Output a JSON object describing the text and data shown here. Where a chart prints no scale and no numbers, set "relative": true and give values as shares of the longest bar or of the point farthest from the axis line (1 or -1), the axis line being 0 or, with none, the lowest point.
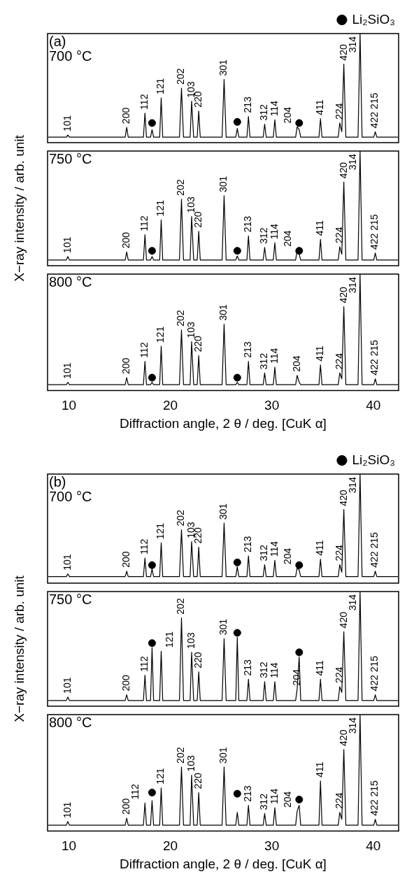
{
  "chart_data": [
    {
      "type": "line",
      "x": [
        8.0,
        9.75,
        9.9,
        10.05,
        15.55,
        15.7,
        15.85,
        17.35,
        17.5,
        17.65,
        18.05,
        18.2,
        18.35,
        18.95,
        19.1,
        19.25,
        20.9,
        21.1,
        21.3,
        21.95,
        22.1,
        22.3,
        22.65,
        22.8,
        22.95,
        25.1,
        25.3,
        25.5,
        26.45,
        26.6,
        26.75,
        27.55,
        27.7,
        27.85,
        29.15,
        29.3,
        29.45,
        30.15,
        30.3,
        30.45,
        32.35,
        32.5,
        32.7,
        32.85,
        34.65,
        34.8,
        34.95,
        36.55,
        36.7,
        36.9,
        37.1,
        37.3,
        38.5,
        38.7,
        38.9,
        40.05,
        40.2,
        40.35,
        42.4
      ],
      "xlim": [
        7.9,
        42.5
      ],
      "xticks": [
        10,
        20,
        30,
        40
      ],
      "relative": true,
      "tick_labels": false,
      "legend": "top right",
      "series": [
        {
          "type": "line",
          "color": "#000000",
          "marker": "none",
          "values": [
            0.05,
            0.05,
            0.07,
            0.05,
            0.05,
            0.14,
            0.05,
            0.05,
            0.27,
            0.05,
            0.05,
            0.12,
            0.05,
            0.05,
            0.41,
            0.05,
            0.05,
            0.5,
            0.05,
            0.05,
            0.38,
            0.05,
            0.05,
            0.29,
            0.05,
            0.05,
            0.58,
            0.05,
            0.05,
            0.13,
            0.05,
            0.05,
            0.24,
            0.05,
            0.05,
            0.17,
            0.05,
            0.05,
            0.21,
            0.05,
            0.05,
            0.145,
            0.12,
            0.05,
            0.05,
            0.22,
            0.05,
            0.05,
            0.18,
            0.1,
            0.72,
            0.05,
            0.05,
            1,
            0.05,
            0.05,
            0.1,
            0.05,
            0.05
          ]
        },
        {
          "type": "scatter",
          "name": "Li₂SiO₃",
          "color": "#000000",
          "marker": "circle",
          "x": [
            18.2,
            26.6,
            32.7
          ],
          "values": [
            0.18,
            0.19,
            0.18
          ]
        }
      ],
      "annotations": [
        "(a)",
        "700 °C",
        {
          "text": "101",
          "x": 9.9,
          "y": 0.07
        },
        {
          "text": "200",
          "x": 15.7,
          "y": 0.14
        },
        {
          "text": "112",
          "x": 17.5,
          "y": 0.27
        },
        {
          "text": "121",
          "x": 19.1,
          "y": 0.41
        },
        {
          "text": "202",
          "x": 21.1,
          "y": 0.5
        },
        {
          "text": "103",
          "x": 22.1,
          "y": 0.38
        },
        {
          "text": "220",
          "x": 22.8,
          "y": 0.29
        },
        {
          "text": "301",
          "x": 25.3,
          "y": 0.58
        },
        {
          "text": "213",
          "x": 27.7,
          "y": 0.24
        },
        {
          "text": "312",
          "x": 29.3,
          "y": 0.17
        },
        {
          "text": "114",
          "x": 30.3,
          "y": 0.21
        },
        {
          "text": "204",
          "x": 32.5,
          "y": 0.145
        },
        {
          "text": "411",
          "x": 34.8,
          "y": 0.22
        },
        {
          "text": "224",
          "x": 36.7,
          "y": 0.18
        },
        {
          "text": "420",
          "x": 37.1,
          "y": 0.72
        },
        {
          "text": "314",
          "x": 38.7,
          "y": 1
        },
        {
          "text": "422 215",
          "x": 40.2,
          "y": 0.1
        }
      ]
    },
    {
      "type": "line",
      "x": [
        8.0,
        9.75,
        9.9,
        10.05,
        15.55,
        15.7,
        15.85,
        17.35,
        17.5,
        17.65,
        18.05,
        18.2,
        18.35,
        18.95,
        19.1,
        19.25,
        20.9,
        21.1,
        21.3,
        21.95,
        22.1,
        22.3,
        22.65,
        22.8,
        22.95,
        25.1,
        25.3,
        25.5,
        26.45,
        26.6,
        26.75,
        27.55,
        27.7,
        27.85,
        29.15,
        29.3,
        29.45,
        30.15,
        30.3,
        30.45,
        32.35,
        32.5,
        32.7,
        32.85,
        34.65,
        34.8,
        34.95,
        36.55,
        36.7,
        36.9,
        37.1,
        37.3,
        38.5,
        38.7,
        38.9,
        40.05,
        40.2,
        40.35,
        42.4
      ],
      "xlim": [
        7.9,
        42.5
      ],
      "xticks": [
        10,
        20,
        30,
        40
      ],
      "relative": true,
      "tick_labels": false,
      "ylabel": "X−ray intensity / arb. unit",
      "series": [
        {
          "type": "line",
          "color": "#000000",
          "marker": "none",
          "values": [
            0.05,
            0.05,
            0.08,
            0.05,
            0.05,
            0.12,
            0.05,
            0.05,
            0.27,
            0.05,
            0.05,
            0.08,
            0.05,
            0.05,
            0.4,
            0.05,
            0.05,
            0.58,
            0.05,
            0.05,
            0.43,
            0.05,
            0.05,
            0.3,
            0.05,
            0.05,
            0.61,
            0.05,
            0.05,
            0.085,
            0.05,
            0.05,
            0.26,
            0.05,
            0.05,
            0.16,
            0.05,
            0.05,
            0.2,
            0.05,
            0.05,
            0.135,
            0.1,
            0.05,
            0.05,
            0.23,
            0.05,
            0.05,
            0.165,
            0.1,
            0.73,
            0.05,
            0.05,
            1,
            0.05,
            0.05,
            0.11,
            0.05,
            0.05
          ]
        },
        {
          "type": "scatter",
          "color": "#000000",
          "marker": "circle",
          "x": [
            18.2,
            26.6,
            32.7
          ],
          "values": [
            0.13,
            0.13,
            0.13
          ]
        }
      ],
      "annotations": [
        "750 °C",
        {
          "text": "101",
          "x": 9.9,
          "y": 0.08
        },
        {
          "text": "200",
          "x": 15.7,
          "y": 0.12
        },
        {
          "text": "112",
          "x": 17.5,
          "y": 0.27
        },
        {
          "text": "121",
          "x": 19.1,
          "y": 0.4
        },
        {
          "text": "202",
          "x": 21.1,
          "y": 0.58
        },
        {
          "text": "103",
          "x": 22.1,
          "y": 0.43
        },
        {
          "text": "220",
          "x": 22.8,
          "y": 0.3
        },
        {
          "text": "301",
          "x": 25.3,
          "y": 0.61
        },
        {
          "text": "213",
          "x": 27.7,
          "y": 0.26
        },
        {
          "text": "312",
          "x": 29.3,
          "y": 0.16
        },
        {
          "text": "114",
          "x": 30.3,
          "y": 0.2
        },
        {
          "text": "204",
          "x": 32.5,
          "y": 0.135
        },
        {
          "text": "411",
          "x": 34.8,
          "y": 0.23
        },
        {
          "text": "224",
          "x": 36.7,
          "y": 0.165
        },
        {
          "text": "420",
          "x": 37.1,
          "y": 0.73
        },
        {
          "text": "314",
          "x": 38.7,
          "y": 1
        },
        {
          "text": "422 215",
          "x": 40.2,
          "y": 0.11
        }
      ]
    },
    {
      "type": "line",
      "x": [
        8.0,
        9.75,
        9.9,
        10.05,
        15.55,
        15.7,
        15.85,
        17.35,
        17.5,
        17.65,
        18.05,
        18.2,
        18.35,
        18.95,
        19.1,
        19.25,
        20.9,
        21.1,
        21.3,
        21.95,
        22.1,
        22.3,
        22.65,
        22.8,
        22.95,
        25.1,
        25.3,
        25.5,
        26.45,
        26.6,
        26.75,
        27.55,
        27.7,
        27.85,
        29.15,
        29.3,
        29.45,
        30.15,
        30.3,
        30.45,
        32.35,
        32.5,
        32.7,
        32.85,
        34.65,
        34.8,
        34.95,
        36.55,
        36.7,
        36.9,
        37.1,
        37.3,
        38.5,
        38.7,
        38.9,
        40.05,
        40.2,
        40.35,
        42.4
      ],
      "xlim": [
        7.9,
        42.5
      ],
      "xticks": [
        10,
        20,
        30,
        40
      ],
      "relative": true,
      "tick_labels": "x",
      "xlabel": "Diffraction angle, 2 θ / deg. [CuK α]",
      "series": [
        {
          "type": "line",
          "color": "#000000",
          "marker": "none",
          "values": [
            0.05,
            0.05,
            0.07,
            0.05,
            0.05,
            0.11,
            0.05,
            0.05,
            0.25,
            0.05,
            0.05,
            0.07,
            0.05,
            0.05,
            0.38,
            0.05,
            0.05,
            0.52,
            0.05,
            0.05,
            0.42,
            0.05,
            0.05,
            0.3,
            0.05,
            0.05,
            0.57,
            0.05,
            0.05,
            0.07,
            0.05,
            0.05,
            0.25,
            0.05,
            0.05,
            0.15,
            0.05,
            0.05,
            0.2,
            0.05,
            0.05,
            0.13,
            0.07,
            0.05,
            0.05,
            0.22,
            0.05,
            0.05,
            0.15,
            0.1,
            0.72,
            0.05,
            0.05,
            1,
            0.05,
            0.05,
            0.1,
            0.05,
            0.05
          ]
        },
        {
          "type": "scatter",
          "color": "#000000",
          "marker": "circle",
          "x": [
            18.2,
            26.6
          ],
          "values": [
            0.11,
            0.11
          ]
        }
      ],
      "annotations": [
        "800 °C",
        {
          "text": "101",
          "x": 9.9,
          "y": 0.07
        },
        {
          "text": "200",
          "x": 15.7,
          "y": 0.11
        },
        {
          "text": "112",
          "x": 17.5,
          "y": 0.25
        },
        {
          "text": "121",
          "x": 19.1,
          "y": 0.38
        },
        {
          "text": "202",
          "x": 21.1,
          "y": 0.52
        },
        {
          "text": "103",
          "x": 22.1,
          "y": 0.42
        },
        {
          "text": "220",
          "x": 22.8,
          "y": 0.3
        },
        {
          "text": "301",
          "x": 25.3,
          "y": 0.57
        },
        {
          "text": "213",
          "x": 27.7,
          "y": 0.25
        },
        {
          "text": "312",
          "x": 29.3,
          "y": 0.15
        },
        {
          "text": "114",
          "x": 30.3,
          "y": 0.2
        },
        {
          "text": "204",
          "x": 32.5,
          "y": 0.13
        },
        {
          "text": "411",
          "x": 34.8,
          "y": 0.22
        },
        {
          "text": "224",
          "x": 36.7,
          "y": 0.15
        },
        {
          "text": "420",
          "x": 37.1,
          "y": 0.72
        },
        {
          "text": "314",
          "x": 38.7,
          "y": 1
        },
        {
          "text": "422 215",
          "x": 40.2,
          "y": 0.1
        }
      ]
    },
    {
      "type": "line",
      "x": [
        8.0,
        9.75,
        9.9,
        10.05,
        15.55,
        15.7,
        15.85,
        17.35,
        17.5,
        17.65,
        18.05,
        18.2,
        18.35,
        18.95,
        19.1,
        19.25,
        20.9,
        21.1,
        21.3,
        21.95,
        22.1,
        22.3,
        22.65,
        22.8,
        22.95,
        25.1,
        25.3,
        25.5,
        26.45,
        26.6,
        26.75,
        27.55,
        27.7,
        27.85,
        29.15,
        29.3,
        29.45,
        30.15,
        30.3,
        30.45,
        32.35,
        32.5,
        32.7,
        32.85,
        34.65,
        34.8,
        34.95,
        36.55,
        36.7,
        36.9,
        37.1,
        37.3,
        38.5,
        38.7,
        38.9,
        40.05,
        40.2,
        40.35,
        42.4
      ],
      "xlim": [
        7.9,
        42.5
      ],
      "xticks": [
        10,
        20,
        30,
        40
      ],
      "relative": true,
      "tick_labels": false,
      "legend": "top right",
      "series": [
        {
          "type": "line",
          "color": "#000000",
          "marker": "none",
          "values": [
            0.06,
            0.06,
            0.085,
            0.06,
            0.06,
            0.11,
            0.06,
            0.06,
            0.23,
            0.06,
            0.06,
            0.13,
            0.06,
            0.06,
            0.37,
            0.06,
            0.06,
            0.49,
            0.06,
            0.06,
            0.38,
            0.06,
            0.06,
            0.33,
            0.06,
            0.06,
            0.55,
            0.06,
            0.06,
            0.15,
            0.06,
            0.06,
            0.25,
            0.06,
            0.06,
            0.17,
            0.06,
            0.06,
            0.21,
            0.06,
            0.06,
            0.14,
            0.12,
            0.06,
            0.06,
            0.22,
            0.06,
            0.06,
            0.17,
            0.1,
            0.675,
            0.06,
            0.06,
            1,
            0.06,
            0.06,
            0.11,
            0.06,
            0.06
          ]
        },
        {
          "type": "scatter",
          "name": "Li₂SiO₃",
          "color": "#000000",
          "marker": "circle",
          "x": [
            18.2,
            26.6,
            32.7
          ],
          "values": [
            0.165,
            0.19,
            0.165
          ]
        }
      ],
      "annotations": [
        "(b)",
        "700 °C",
        {
          "text": "101",
          "x": 9.9,
          "y": 0.085
        },
        {
          "text": "200",
          "x": 15.7,
          "y": 0.11
        },
        {
          "text": "112",
          "x": 17.5,
          "y": 0.23
        },
        {
          "text": "121",
          "x": 19.1,
          "y": 0.37
        },
        {
          "text": "202",
          "x": 21.1,
          "y": 0.49
        },
        {
          "text": "103",
          "x": 22.1,
          "y": 0.38
        },
        {
          "text": "220",
          "x": 22.8,
          "y": 0.33
        },
        {
          "text": "301",
          "x": 25.3,
          "y": 0.55
        },
        {
          "text": "213",
          "x": 27.7,
          "y": 0.25
        },
        {
          "text": "312",
          "x": 29.3,
          "y": 0.17
        },
        {
          "text": "114",
          "x": 30.3,
          "y": 0.21
        },
        {
          "text": "204",
          "x": 32.5,
          "y": 0.14
        },
        {
          "text": "411",
          "x": 34.8,
          "y": 0.22
        },
        {
          "text": "224",
          "x": 36.7,
          "y": 0.17
        },
        {
          "text": "420",
          "x": 37.1,
          "y": 0.675
        },
        {
          "text": "314",
          "x": 38.7,
          "y": 1
        },
        {
          "text": "422 215",
          "x": 40.2,
          "y": 0.11
        }
      ]
    },
    {
      "type": "line",
      "x": [
        8.0,
        9.75,
        9.9,
        10.05,
        15.55,
        15.7,
        15.85,
        17.35,
        17.5,
        17.65,
        18.05,
        18.2,
        18.35,
        18.95,
        19.1,
        19.25,
        20.9,
        21.1,
        21.3,
        21.95,
        22.1,
        22.3,
        22.65,
        22.8,
        22.95,
        25.1,
        25.3,
        25.5,
        26.45,
        26.6,
        26.75,
        27.55,
        27.7,
        27.85,
        29.15,
        29.3,
        29.45,
        30.15,
        30.3,
        30.45,
        32.35,
        32.5,
        32.7,
        32.85,
        34.65,
        34.8,
        34.95,
        36.55,
        36.7,
        36.9,
        37.1,
        37.3,
        38.5,
        38.7,
        38.9,
        40.05,
        40.2,
        40.35,
        42.4
      ],
      "xlim": [
        7.9,
        42.5
      ],
      "xticks": [
        10,
        20,
        30,
        40
      ],
      "relative": true,
      "tick_labels": false,
      "ylabel": "X−ray intensity / arb. unit",
      "series": [
        {
          "type": "line",
          "color": "#000000",
          "marker": "none",
          "values": [
            0.05,
            0.05,
            0.08,
            0.05,
            0.05,
            0.1,
            0.05,
            0.05,
            0.27,
            0.05,
            0.05,
            0.51,
            0.05,
            0.05,
            0.48,
            0.05,
            0.05,
            0.77,
            0.05,
            0.05,
            0.47,
            0.05,
            0.05,
            0.3,
            0.05,
            0.05,
            0.59,
            0.05,
            0.05,
            0.6,
            0.05,
            0.05,
            0.235,
            0.05,
            0.05,
            0.215,
            0.05,
            0.05,
            0.215,
            0.05,
            0.05,
            0.15,
            0.43,
            0.05,
            0.05,
            0.235,
            0.05,
            0.05,
            0.17,
            0.12,
            0.65,
            0.05,
            0.05,
            1,
            0.05,
            0.05,
            0.1,
            0.05,
            0.05
          ]
        },
        {
          "type": "scatter",
          "color": "#000000",
          "marker": "circle",
          "x": [
            18.2,
            26.6,
            32.7
          ],
          "values": [
            0.55,
            0.64,
            0.47
          ]
        }
      ],
      "annotations": [
        "750 °C",
        {
          "text": "101",
          "x": 9.9,
          "y": 0.08
        },
        {
          "text": "200",
          "x": 15.7,
          "y": 0.1
        },
        {
          "text": "112",
          "x": 17.5,
          "y": 0.27
        },
        {
          "text": "121",
          "x": 19.1,
          "y": 0.48
        },
        {
          "text": "202",
          "x": 21.1,
          "y": 0.77
        },
        {
          "text": "103",
          "x": 22.1,
          "y": 0.47
        },
        {
          "text": "220",
          "x": 22.8,
          "y": 0.3
        },
        {
          "text": "301",
          "x": 25.3,
          "y": 0.59
        },
        {
          "text": "213",
          "x": 27.7,
          "y": 0.235
        },
        {
          "text": "312",
          "x": 29.3,
          "y": 0.215
        },
        {
          "text": "114",
          "x": 30.3,
          "y": 0.215
        },
        {
          "text": "204",
          "x": 32.5,
          "y": 0.15
        },
        {
          "text": "411",
          "x": 34.8,
          "y": 0.235
        },
        {
          "text": "224",
          "x": 36.7,
          "y": 0.17
        },
        {
          "text": "420",
          "x": 37.1,
          "y": 0.65
        },
        {
          "text": "314",
          "x": 38.7,
          "y": 1
        },
        {
          "text": "422 215",
          "x": 40.2,
          "y": 0.1
        }
      ]
    },
    {
      "type": "line",
      "x": [
        8.0,
        9.75,
        9.9,
        10.05,
        15.55,
        15.7,
        15.85,
        17.35,
        17.5,
        17.65,
        18.05,
        18.2,
        18.35,
        18.95,
        19.1,
        19.25,
        20.9,
        21.1,
        21.3,
        21.95,
        22.1,
        22.3,
        22.65,
        22.8,
        22.95,
        25.1,
        25.3,
        25.5,
        26.45,
        26.6,
        26.75,
        27.55,
        27.7,
        27.85,
        29.15,
        29.3,
        29.45,
        30.15,
        30.3,
        30.45,
        32.35,
        32.5,
        32.7,
        32.85,
        34.65,
        34.8,
        34.95,
        36.55,
        36.7,
        36.9,
        37.1,
        37.3,
        38.5,
        38.7,
        38.9,
        40.05,
        40.2,
        40.35,
        42.4
      ],
      "xlim": [
        7.9,
        42.5
      ],
      "xticks": [
        10,
        20,
        30,
        40
      ],
      "relative": true,
      "tick_labels": "x",
      "xlabel": "Diffraction angle, 2 θ / deg. [CuK α]",
      "series": [
        {
          "type": "line",
          "color": "#000000",
          "marker": "none",
          "values": [
            0.05,
            0.05,
            0.08,
            0.05,
            0.05,
            0.11,
            0.05,
            0.05,
            0.24,
            0.05,
            0.05,
            0.26,
            0.05,
            0.05,
            0.37,
            0.05,
            0.05,
            0.55,
            0.05,
            0.05,
            0.48,
            0.05,
            0.05,
            0.33,
            0.05,
            0.05,
            0.55,
            0.05,
            0.05,
            0.16,
            0.05,
            0.05,
            0.22,
            0.05,
            0.05,
            0.15,
            0.05,
            0.05,
            0.2,
            0.05,
            0.05,
            0.17,
            0.22,
            0.05,
            0.05,
            0.43,
            0.05,
            0.05,
            0.16,
            0.1,
            0.7,
            0.05,
            0.05,
            1,
            0.05,
            0.05,
            0.1,
            0.05,
            0.05
          ]
        },
        {
          "type": "scatter",
          "color": "#000000",
          "marker": "circle",
          "x": [
            18.2,
            26.6,
            32.7
          ],
          "values": [
            0.33,
            0.32,
            0.27
          ]
        }
      ],
      "annotations": [
        "800 °C",
        {
          "text": "101",
          "x": 9.9,
          "y": 0.08
        },
        {
          "text": "200",
          "x": 15.7,
          "y": 0.11
        },
        {
          "text": "112",
          "x": 17.5,
          "y": 0.24
        },
        {
          "text": "121",
          "x": 19.1,
          "y": 0.37
        },
        {
          "text": "202",
          "x": 21.1,
          "y": 0.55
        },
        {
          "text": "103",
          "x": 22.1,
          "y": 0.48
        },
        {
          "text": "220",
          "x": 22.8,
          "y": 0.33
        },
        {
          "text": "301",
          "x": 25.3,
          "y": 0.55
        },
        {
          "text": "213",
          "x": 27.7,
          "y": 0.22
        },
        {
          "text": "312",
          "x": 29.3,
          "y": 0.15
        },
        {
          "text": "114",
          "x": 30.3,
          "y": 0.2
        },
        {
          "text": "204",
          "x": 32.5,
          "y": 0.17
        },
        {
          "text": "411",
          "x": 34.8,
          "y": 0.43
        },
        {
          "text": "224",
          "x": 36.7,
          "y": 0.16
        },
        {
          "text": "420",
          "x": 37.1,
          "y": 0.7
        },
        {
          "text": "314",
          "x": 38.7,
          "y": 1
        },
        {
          "text": "422 215",
          "x": 40.2,
          "y": 0.1
        }
      ]
    }
  ]
}
